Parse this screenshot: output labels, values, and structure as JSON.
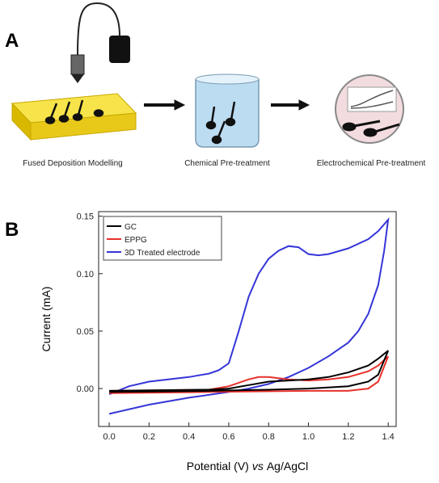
{
  "panel_a": {
    "label": "A",
    "steps": [
      "Fused Deposition Modelling",
      "Chemical Pre-treatment",
      "Electrochemical Pre-treatment"
    ]
  },
  "chart_data": {
    "type": "line",
    "panel_label": "B",
    "x_label": [
      "Potential (V)",
      "vs",
      "Ag/AgCl"
    ],
    "y_label": "Current (mA)",
    "xlim": [
      -0.053,
      1.44
    ],
    "ylim": [
      -0.033,
      0.154
    ],
    "xticks": [
      {
        "value": 0,
        "label": "0.0"
      },
      0.2,
      0.4,
      0.6,
      0.8,
      {
        "value": 1,
        "label": "1.0"
      },
      1.2,
      1.4
    ],
    "yticks": [
      {
        "value": 0,
        "label": "0.00"
      },
      0.05,
      {
        "value": 0.1,
        "label": "0.10"
      },
      0.15
    ],
    "legend": "upper left",
    "series": [
      {
        "name": "GC",
        "color": "#000000",
        "x": [
          0.0,
          0.5,
          0.6,
          0.7,
          0.8,
          0.9,
          1.0,
          1.1,
          1.2,
          1.3,
          1.35,
          1.4,
          1.35,
          1.3,
          1.2,
          1.0,
          0.8,
          0.5,
          0.0
        ],
        "values": [
          -0.002,
          -0.001,
          0.0,
          0.003,
          0.006,
          0.007,
          0.008,
          0.01,
          0.014,
          0.02,
          0.026,
          0.033,
          0.012,
          0.006,
          0.002,
          0.0,
          -0.001,
          -0.002,
          -0.003
        ]
      },
      {
        "name": "EPPG",
        "color": "#e8302a",
        "x": [
          0.0,
          0.5,
          0.6,
          0.7,
          0.75,
          0.8,
          0.9,
          1.0,
          1.1,
          1.2,
          1.3,
          1.35,
          1.4,
          1.35,
          1.3,
          1.2,
          1.0,
          0.5,
          0.0
        ],
        "values": [
          -0.002,
          -0.001,
          0.002,
          0.008,
          0.01,
          0.01,
          0.008,
          0.007,
          0.008,
          0.01,
          0.015,
          0.02,
          0.028,
          0.006,
          0.0,
          -0.002,
          -0.002,
          -0.003,
          -0.004
        ]
      },
      {
        "name": "3D Treated electrode",
        "color": "#3535d8",
        "x": [
          0.0,
          0.1,
          0.2,
          0.4,
          0.5,
          0.55,
          0.6,
          0.65,
          0.7,
          0.75,
          0.8,
          0.85,
          0.9,
          0.95,
          1.0,
          1.05,
          1.1,
          1.2,
          1.3,
          1.35,
          1.4,
          1.38,
          1.35,
          1.3,
          1.25,
          1.2,
          1.1,
          1.0,
          0.9,
          0.8,
          0.7,
          0.6,
          0.4,
          0.2,
          0.0
        ],
        "values": [
          -0.005,
          0.002,
          0.006,
          0.01,
          0.013,
          0.016,
          0.022,
          0.05,
          0.08,
          0.1,
          0.113,
          0.12,
          0.124,
          0.123,
          0.117,
          0.116,
          0.117,
          0.122,
          0.13,
          0.137,
          0.147,
          0.12,
          0.09,
          0.065,
          0.05,
          0.04,
          0.028,
          0.018,
          0.01,
          0.004,
          0.0,
          -0.003,
          -0.008,
          -0.014,
          -0.022
        ]
      }
    ]
  }
}
